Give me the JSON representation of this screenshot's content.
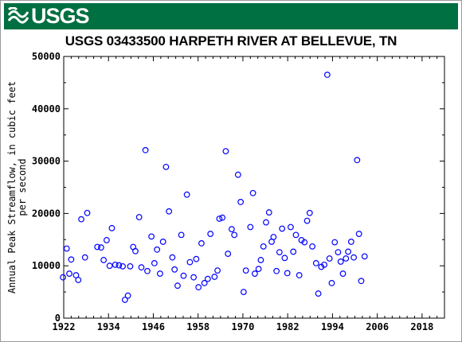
{
  "header": {
    "logo_text": "USGS",
    "logo_icon": "usgs-wave-icon",
    "banner_color": "#006f41"
  },
  "chart_data": {
    "type": "scatter",
    "title": "USGS 03433500 HARPETH RIVER AT BELLEVUE, TN",
    "xlabel": "",
    "ylabel": "Annual Peak Streamflow, in cubic feet per second",
    "ylabel_lines": [
      "Annual Peak Streamflow, in cubic feet",
      "per second"
    ],
    "xlim": [
      1922,
      2024
    ],
    "ylim": [
      0,
      50000
    ],
    "x_ticks": [
      1922,
      1934,
      1946,
      1958,
      1970,
      1982,
      1994,
      2006,
      2018
    ],
    "y_ticks": [
      0,
      10000,
      20000,
      30000,
      40000,
      50000
    ],
    "grid": false,
    "marker": "open-circle",
    "marker_color": "#0000ff",
    "series": [
      {
        "points": [
          [
            1921.8,
            7800
          ],
          [
            1922.8,
            13300
          ],
          [
            1923.5,
            8500
          ],
          [
            1924.0,
            11200
          ],
          [
            1925.3,
            8200
          ],
          [
            1925.9,
            7300
          ],
          [
            1926.7,
            18900
          ],
          [
            1927.7,
            11600
          ],
          [
            1928.3,
            20100
          ],
          [
            1931.0,
            13600
          ],
          [
            1932.0,
            13500
          ],
          [
            1932.7,
            11100
          ],
          [
            1933.5,
            14900
          ],
          [
            1934.3,
            10000
          ],
          [
            1934.9,
            17200
          ],
          [
            1935.8,
            10200
          ],
          [
            1936.8,
            10100
          ],
          [
            1937.8,
            9900
          ],
          [
            1938.4,
            3500
          ],
          [
            1939.2,
            4300
          ],
          [
            1939.8,
            9900
          ],
          [
            1940.6,
            13600
          ],
          [
            1941.2,
            12800
          ],
          [
            1942.2,
            19300
          ],
          [
            1942.8,
            9700
          ],
          [
            1943.9,
            32100
          ],
          [
            1944.4,
            9000
          ],
          [
            1945.5,
            15600
          ],
          [
            1946.3,
            10500
          ],
          [
            1947.0,
            13100
          ],
          [
            1947.8,
            8500
          ],
          [
            1948.6,
            14600
          ],
          [
            1949.4,
            28900
          ],
          [
            1950.2,
            20400
          ],
          [
            1951.1,
            11600
          ],
          [
            1951.7,
            9300
          ],
          [
            1952.5,
            6200
          ],
          [
            1953.5,
            15900
          ],
          [
            1954.1,
            8100
          ],
          [
            1955.0,
            23600
          ],
          [
            1955.8,
            10700
          ],
          [
            1956.8,
            7800
          ],
          [
            1957.5,
            11300
          ],
          [
            1958.1,
            5900
          ],
          [
            1958.9,
            14300
          ],
          [
            1959.7,
            6700
          ],
          [
            1960.6,
            7500
          ],
          [
            1961.3,
            16100
          ],
          [
            1962.4,
            7900
          ],
          [
            1963.2,
            9100
          ],
          [
            1963.7,
            19000
          ],
          [
            1964.5,
            19200
          ],
          [
            1965.4,
            31900
          ],
          [
            1966.0,
            12300
          ],
          [
            1967.0,
            17000
          ],
          [
            1967.7,
            15900
          ],
          [
            1968.7,
            27400
          ],
          [
            1969.4,
            22200
          ],
          [
            1970.2,
            5000
          ],
          [
            1970.8,
            9100
          ],
          [
            1972.0,
            17400
          ],
          [
            1972.7,
            23900
          ],
          [
            1973.2,
            8500
          ],
          [
            1974.2,
            9400
          ],
          [
            1974.8,
            11100
          ],
          [
            1975.5,
            13700
          ],
          [
            1976.2,
            18300
          ],
          [
            1977.0,
            20200
          ],
          [
            1977.7,
            14600
          ],
          [
            1978.2,
            15500
          ],
          [
            1979.0,
            9000
          ],
          [
            1979.8,
            12600
          ],
          [
            1980.5,
            17100
          ],
          [
            1981.2,
            11500
          ],
          [
            1981.9,
            8600
          ],
          [
            1982.8,
            17400
          ],
          [
            1983.5,
            12700
          ],
          [
            1984.2,
            15900
          ],
          [
            1985.1,
            8200
          ],
          [
            1985.7,
            14900
          ],
          [
            1986.5,
            14500
          ],
          [
            1987.2,
            18600
          ],
          [
            1987.9,
            20100
          ],
          [
            1988.6,
            13700
          ],
          [
            1989.6,
            10500
          ],
          [
            1990.2,
            4700
          ],
          [
            1991.0,
            9800
          ],
          [
            1991.8,
            10200
          ],
          [
            1992.6,
            46500
          ],
          [
            1993.2,
            11400
          ],
          [
            1993.8,
            6700
          ],
          [
            1994.6,
            14500
          ],
          [
            1995.5,
            12600
          ],
          [
            1996.2,
            10800
          ],
          [
            1996.8,
            8500
          ],
          [
            1997.6,
            11400
          ],
          [
            1998.2,
            12700
          ],
          [
            1999.0,
            14600
          ],
          [
            1999.7,
            11600
          ],
          [
            2000.6,
            30200
          ],
          [
            2001.1,
            16100
          ],
          [
            2001.7,
            7100
          ],
          [
            2002.6,
            11800
          ]
        ]
      }
    ]
  }
}
